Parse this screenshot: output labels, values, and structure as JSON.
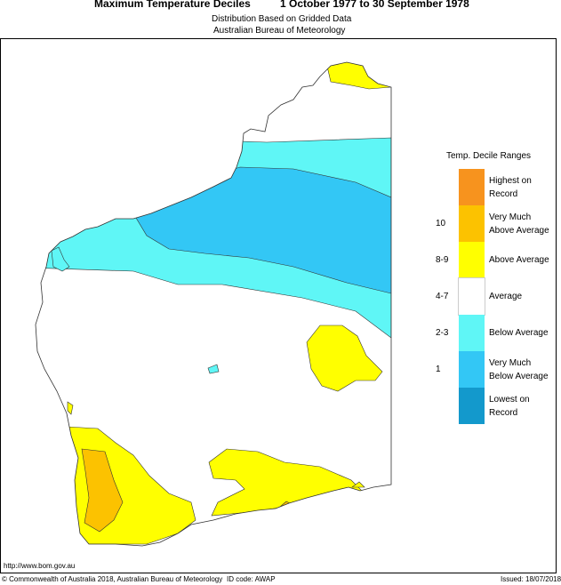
{
  "header": {
    "title": "Maximum Temperature Deciles",
    "period": "1 October 1977 to 30 September 1978",
    "subtitle": "Distribution Based on Gridded Data",
    "agency": "Australian Bureau of Meteorology"
  },
  "legend": {
    "title": "Temp. Decile Ranges",
    "items": [
      {
        "label": "Highest on Record",
        "range": null,
        "color": "#f7931e"
      },
      {
        "label": "Very Much Above Average",
        "range": "10",
        "color": "#fcc200"
      },
      {
        "label": "Above Average",
        "range": "8-9",
        "color": "#ffff00"
      },
      {
        "label": "Average",
        "range": "4-7",
        "color": "#ffffff"
      },
      {
        "label": "Below Average",
        "range": "2-3",
        "color": "#5ff6f6"
      },
      {
        "label": "Very Much Below Average",
        "range": "1",
        "color": "#33c7f5"
      },
      {
        "label": "Lowest on Record",
        "range": null,
        "color": "#1399cc"
      }
    ]
  },
  "footer": {
    "url": "http://www.bom.gov.au",
    "copyright": "© Commonwealth of Australia 2018, Australian Bureau of Meteorology",
    "id_code": "ID code: AWAP",
    "issued": "Issued: 18/07/2018"
  }
}
